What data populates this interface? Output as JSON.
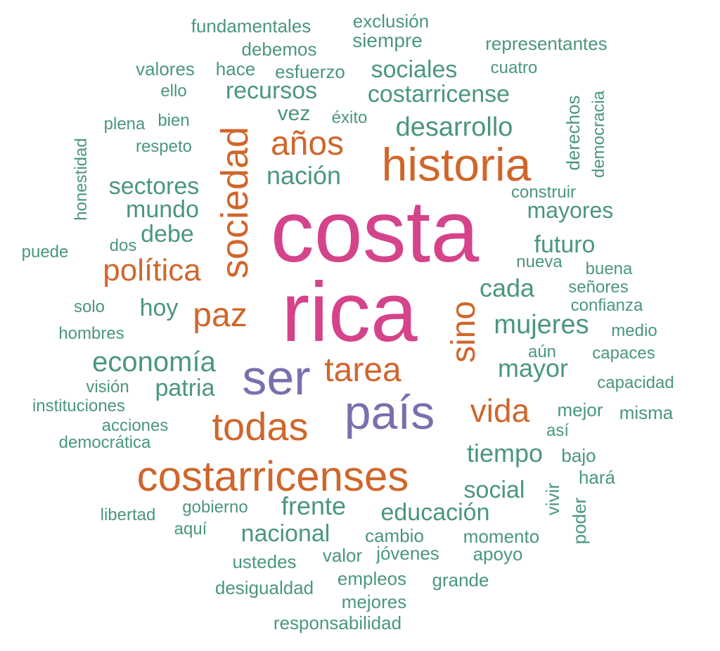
{
  "colors": {
    "background": "#ffffff",
    "pink": "#d5438b",
    "purple": "#7b6fae",
    "orange": "#d0662b",
    "green": "#4a977a"
  },
  "words": [
    "costa",
    "rica",
    "ser",
    "país",
    "historia",
    "costarricenses",
    "todas",
    "sociedad",
    "sino",
    "política",
    "años",
    "paz",
    "tarea",
    "vida",
    "mujeres",
    "economía",
    "desarrollo",
    "mayor",
    "nación",
    "sectores",
    "costarricense",
    "recursos",
    "sociales",
    "mundo",
    "debe",
    "mayores",
    "futuro",
    "cada",
    "tiempo",
    "frente",
    "educación",
    "nacional",
    "social",
    "patria",
    "hoy",
    "vez",
    "éxito",
    "plena",
    "bien",
    "respeto",
    "honestidad",
    "puede",
    "dos",
    "solo",
    "hombres",
    "visión",
    "instituciones",
    "acciones",
    "democrática",
    "libertad",
    "gobierno",
    "aquí",
    "ustedes",
    "desigualdad",
    "valor",
    "jóvenes",
    "empleos",
    "mejores",
    "responsabilidad",
    "cambio",
    "momento",
    "apoyo",
    "grande",
    "vivir",
    "poder",
    "hará",
    "bajo",
    "así",
    "mejor",
    "misma",
    "capacidad",
    "capaces",
    "aún",
    "medio",
    "confianza",
    "señores",
    "buena",
    "nueva",
    "construir",
    "derechos",
    "democracia",
    "cuatro",
    "representantes",
    "exclusión",
    "siempre",
    "fundamentales",
    "debemos",
    "valores",
    "hace",
    "esfuerzo",
    "ello"
  ]
}
